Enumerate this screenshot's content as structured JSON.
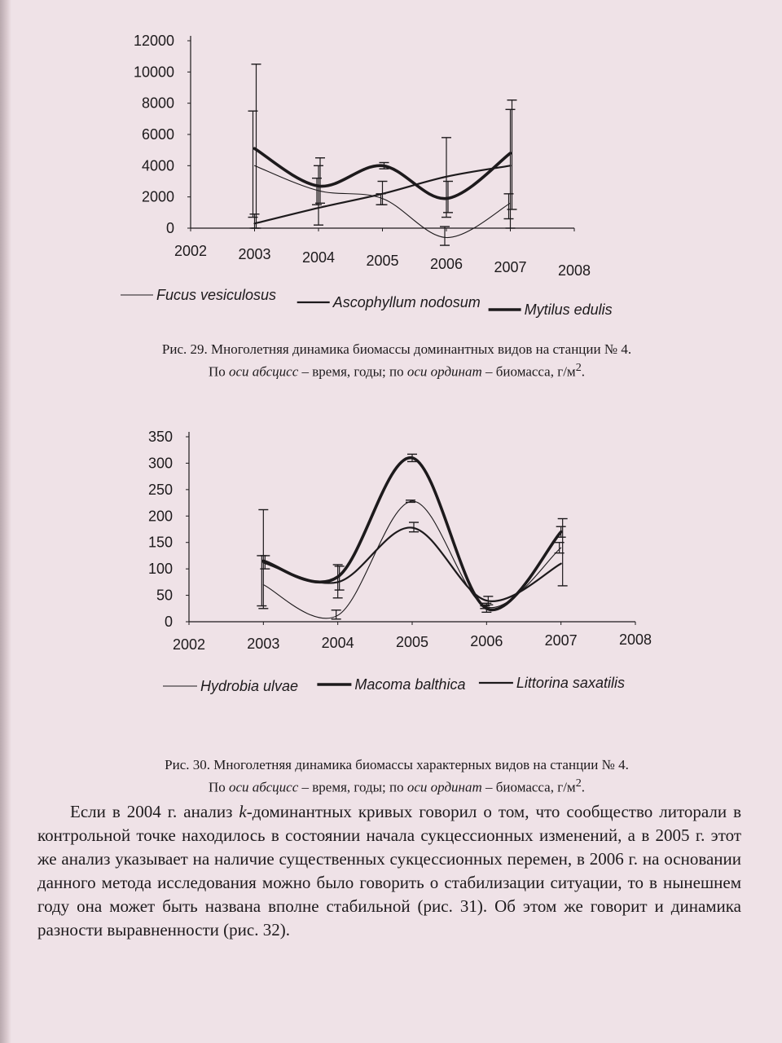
{
  "chart_data": [
    {
      "type": "line",
      "x_ticks": [
        "2002",
        "2003",
        "2004",
        "2005",
        "2006",
        "2007",
        "2008"
      ],
      "y_ticks": [
        "0",
        "2000",
        "4000",
        "6000",
        "8000",
        "10000",
        "12000"
      ],
      "xlim": [
        2002,
        2008
      ],
      "ylim": [
        0,
        12000
      ],
      "legend_position": "bottom",
      "series": [
        {
          "name": "Fucus vesiculosus",
          "style": "thin",
          "x": [
            2003,
            2004,
            2005,
            2006,
            2007
          ],
          "values": [
            4000,
            2400,
            1900,
            -600,
            1600
          ],
          "error_high": [
            7500,
            3200,
            2200,
            100,
            2200
          ],
          "error_low": [
            700,
            1500,
            1500,
            -1100,
            600
          ]
        },
        {
          "name": "Ascophyllum nodosum",
          "style": "medium",
          "x": [
            2003,
            2004,
            2005,
            2006,
            2007
          ],
          "values": [
            300,
            1300,
            2200,
            3300,
            4000
          ],
          "error_high": [
            900,
            4000,
            3000,
            5800,
            7600
          ],
          "error_low": [
            0,
            200,
            1500,
            700,
            0
          ]
        },
        {
          "name": "Mytilus edulis",
          "style": "thick",
          "x": [
            2003,
            2004,
            2005,
            2006,
            2007
          ],
          "values": [
            5100,
            2700,
            4000,
            1900,
            4800
          ],
          "error_high": [
            10500,
            4500,
            4200,
            3000,
            8200
          ],
          "error_low": [
            0,
            1600,
            3800,
            1000,
            1200
          ]
        }
      ]
    },
    {
      "type": "line",
      "x_ticks": [
        "2002",
        "2003",
        "2004",
        "2005",
        "2006",
        "2007",
        "2008"
      ],
      "y_ticks": [
        "0",
        "50",
        "100",
        "150",
        "200",
        "250",
        "300",
        "350"
      ],
      "xlim": [
        2002,
        2008
      ],
      "ylim": [
        0,
        350
      ],
      "legend_position": "bottom",
      "series": [
        {
          "name": "Hydrobia ulvae",
          "style": "thin",
          "x": [
            2003,
            2004,
            2005,
            2006,
            2007
          ],
          "values": [
            70,
            12,
            228,
            28,
            140
          ],
          "error_high": [
            125,
            22,
            230,
            30,
            150
          ],
          "error_low": [
            30,
            5,
            226,
            25,
            130
          ]
        },
        {
          "name": "Macoma balthica",
          "style": "thick",
          "x": [
            2003,
            2004,
            2005,
            2006,
            2007
          ],
          "values": [
            115,
            85,
            310,
            25,
            170
          ],
          "error_high": [
            212,
            108,
            317,
            35,
            180
          ],
          "error_low": [
            25,
            45,
            303,
            18,
            160
          ]
        },
        {
          "name": "Littorina saxatilis",
          "style": "medium",
          "x": [
            2003,
            2004,
            2005,
            2006,
            2007
          ],
          "values": [
            112,
            75,
            178,
            40,
            110
          ],
          "error_high": [
            125,
            105,
            188,
            48,
            195
          ],
          "error_low": [
            100,
            60,
            170,
            32,
            68
          ]
        }
      ]
    }
  ],
  "captions": [
    {
      "line1": "Рис. 29. Многолетняя динамика биомассы доминантных видов на станции № 4.",
      "line2_a": "По ",
      "line2_b": "оси абсцисс",
      "line2_c": " – время, годы; по ",
      "line2_d": "оси ординат",
      "line2_e": " – биомасса, г/м",
      "line2_sup": "2",
      "line2_f": "."
    },
    {
      "line1": "Рис. 30. Многолетняя динамика биомассы характерных видов на станции № 4.",
      "line2_a": "По ",
      "line2_b": "оси абсцисс",
      "line2_c": " – время, годы; по ",
      "line2_d": "оси ординат",
      "line2_e": " – биомасса, г/м",
      "line2_sup": "2",
      "line2_f": "."
    }
  ],
  "paragraph": {
    "part1": "Если в 2004 г. анализ ",
    "italic_k": "k",
    "part2": "-доминантных кривых говорил о том, что сообщество литорали в контрольной точке находилось в состоянии начала сукцессионных изменений, а в 2005 г. этот же анализ указывает на наличие существенных сукцессионных перемен, в 2006 г. на основании данного метода исследования можно было говорить о стабилизации ситуации, то в нынешнем году она может быть названа вполне стабильной (рис. 31). Об этом же говорит и динамика разности выравненности (рис. 32)."
  }
}
